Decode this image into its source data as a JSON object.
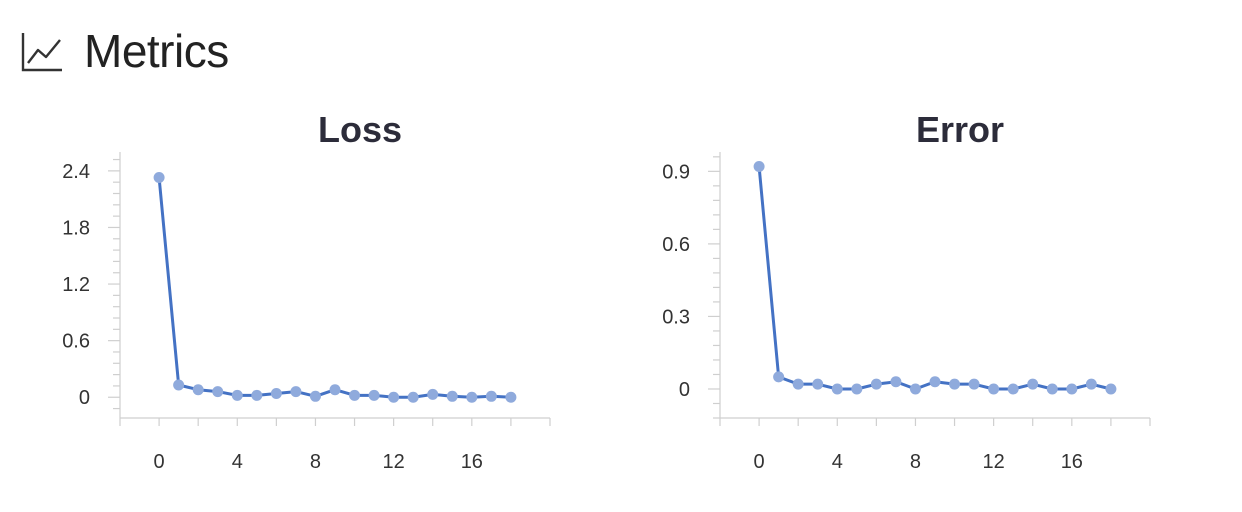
{
  "header": {
    "title": "Metrics",
    "icon": "line-chart-icon"
  },
  "colors": {
    "line": "#4472c4",
    "marker": "#8faadc",
    "axis": "#cfcfcf",
    "title": "#2c2c3a"
  },
  "chart_data": [
    {
      "type": "line",
      "title": "Loss",
      "xlabel": "",
      "ylabel": "",
      "x": [
        0,
        1,
        2,
        3,
        4,
        5,
        6,
        7,
        8,
        9,
        10,
        11,
        12,
        13,
        14,
        15,
        16,
        17,
        18
      ],
      "series": [
        {
          "values": [
            2.33,
            0.13,
            0.08,
            0.06,
            0.02,
            0.02,
            0.04,
            0.06,
            0.01,
            0.08,
            0.02,
            0.02,
            0.0,
            0.0,
            0.03,
            0.01,
            0.0,
            0.01,
            0.0
          ]
        }
      ],
      "xlim": [
        -2,
        20
      ],
      "ylim": [
        -0.22,
        2.6
      ],
      "xticks": [
        0,
        4,
        8,
        12,
        16
      ],
      "xtick_labels": [
        "0",
        "4",
        "8",
        "12",
        "16"
      ],
      "yticks": [
        0,
        0.6,
        1.2,
        1.8,
        2.4
      ],
      "ytick_labels": [
        "0",
        "0.6",
        "1.2",
        "1.8",
        "2.4"
      ],
      "grid": false
    },
    {
      "type": "line",
      "title": "Error",
      "xlabel": "",
      "ylabel": "",
      "x": [
        0,
        1,
        2,
        3,
        4,
        5,
        6,
        7,
        8,
        9,
        10,
        11,
        12,
        13,
        14,
        15,
        16,
        17,
        18
      ],
      "series": [
        {
          "values": [
            0.92,
            0.05,
            0.02,
            0.02,
            0.0,
            0.0,
            0.02,
            0.03,
            0.0,
            0.03,
            0.02,
            0.02,
            0.0,
            0.0,
            0.02,
            0.0,
            0.0,
            0.02,
            0.0
          ]
        }
      ],
      "xlim": [
        -2,
        20
      ],
      "ylim": [
        -0.12,
        0.98
      ],
      "xticks": [
        0,
        4,
        8,
        12,
        16
      ],
      "xtick_labels": [
        "0",
        "4",
        "8",
        "12",
        "16"
      ],
      "yticks": [
        0,
        0.3,
        0.6,
        0.9
      ],
      "ytick_labels": [
        "0",
        "0.3",
        "0.6",
        "0.9"
      ],
      "grid": false
    }
  ]
}
